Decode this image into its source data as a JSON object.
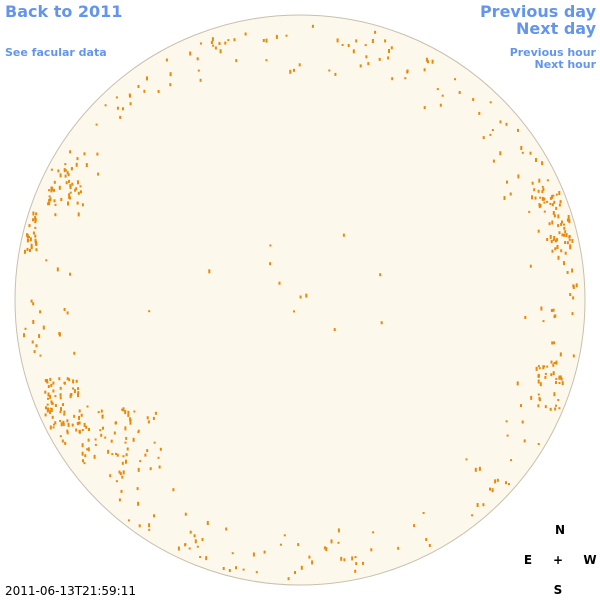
{
  "nav": {
    "back": "Back to 2011",
    "facular": "See facular data",
    "previous_day": "Previous day",
    "next_day": "Next day",
    "previous_hour": "Previous hour",
    "next_hour": "Next hour"
  },
  "timestamp": "2011-06-13T21:59:11",
  "compass": {
    "north": "N",
    "east": "E",
    "center": "+",
    "west": "W",
    "south": "S"
  }
}
